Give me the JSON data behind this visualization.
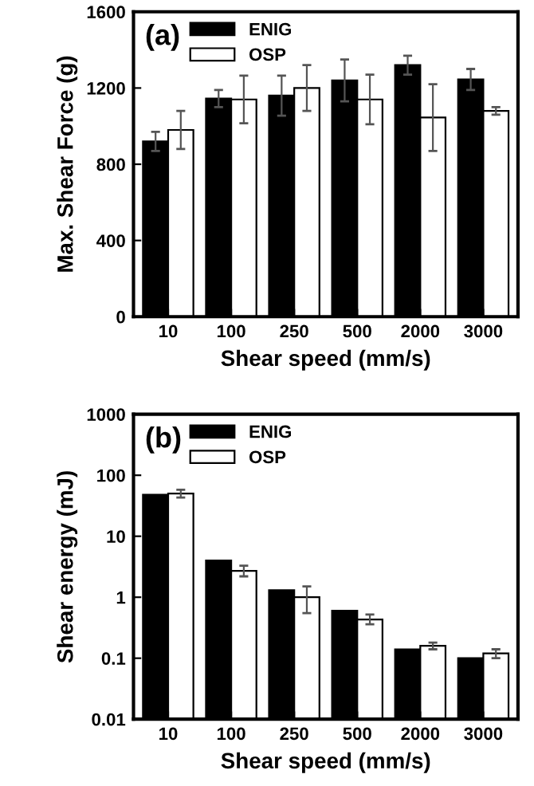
{
  "chart_data": [
    {
      "type": "bar",
      "xlabel": "Shear speed (mm/s)",
      "ylabel": "Max. Shear Force (g)",
      "annotations": [
        "(a)"
      ],
      "categories": [
        "10",
        "100",
        "250",
        "500",
        "2000",
        "3000"
      ],
      "series": [
        {
          "name": "ENIG",
          "color": "#000000",
          "values": [
            920,
            1145,
            1160,
            1240,
            1320,
            1245
          ],
          "errors": [
            50,
            45,
            105,
            110,
            50,
            55
          ]
        },
        {
          "name": "OSP",
          "color": "#ffffff",
          "values": [
            980,
            1140,
            1200,
            1140,
            1045,
            1080
          ],
          "errors": [
            100,
            125,
            120,
            130,
            175,
            20
          ]
        }
      ],
      "ylim": [
        0,
        1600
      ],
      "yticks": [
        0,
        400,
        800,
        1200,
        1600
      ],
      "legend": "top left",
      "grid": false
    },
    {
      "type": "bar",
      "xlabel": "Shear speed (mm/s)",
      "ylabel": "Shear energy (mJ)",
      "annotations": [
        "(b)"
      ],
      "categories": [
        "10",
        "100",
        "250",
        "500",
        "2000",
        "3000"
      ],
      "log": true,
      "series": [
        {
          "name": "ENIG",
          "color": "#000000",
          "values": [
            48,
            4,
            1.3,
            0.6,
            0.14,
            0.1
          ]
        },
        {
          "name": "OSP",
          "color": "#ffffff",
          "values": [
            50,
            2.7,
            1.0,
            0.43,
            0.16,
            0.12
          ],
          "errors": [
            [
              43,
              58
            ],
            [
              2.2,
              3.3
            ],
            [
              0.55,
              1.5
            ],
            [
              0.36,
              0.52
            ],
            [
              0.14,
              0.18
            ],
            [
              0.1,
              0.14
            ]
          ]
        }
      ],
      "ylim": [
        0.01,
        1000
      ],
      "yticks": [
        {
          "value": 0.01,
          "label": "0.01"
        },
        {
          "value": 0.1,
          "label": "0.1"
        },
        {
          "value": 1,
          "label": "1"
        },
        {
          "value": 10,
          "label": "10"
        },
        {
          "value": 100,
          "label": "100"
        },
        {
          "value": 1000,
          "label": "1000"
        }
      ],
      "legend": "top left",
      "grid": false
    }
  ]
}
